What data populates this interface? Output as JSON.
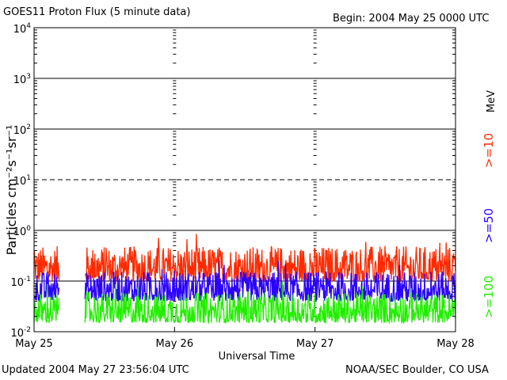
{
  "header": {
    "title": "GOES11 Proton Flux (5 minute data)",
    "begin": "Begin: 2004 May 25 0000 UTC"
  },
  "footer": {
    "updated": "Updated 2004 May 27 23:56:04 UTC",
    "credit": "NOAA/SEC Boulder, CO USA"
  },
  "chart_data": {
    "type": "line",
    "title": "GOES11 Proton Flux (5 minute data)",
    "xlabel": "Universal Time",
    "ylabel": "Particles cm⁻²s⁻¹sr⁻¹",
    "unit_label": "MeV",
    "y_scale": "log",
    "ylim": [
      0.01,
      10000
    ],
    "y_ticks": [
      {
        "base": "10",
        "exp": "-2",
        "value": 0.01
      },
      {
        "base": "10",
        "exp": "-1",
        "value": 0.1
      },
      {
        "base": "10",
        "exp": "0",
        "value": 1
      },
      {
        "base": "10",
        "exp": "1",
        "value": 10
      },
      {
        "base": "10",
        "exp": "2",
        "value": 100
      },
      {
        "base": "10",
        "exp": "3",
        "value": 1000
      },
      {
        "base": "10",
        "exp": "4",
        "value": 10000
      }
    ],
    "x_ticks": [
      "May 25",
      "May 26",
      "May 27",
      "May 28"
    ],
    "xlim_days": [
      0,
      3
    ],
    "grid": true,
    "legend_placement": "right",
    "series": [
      {
        "name": ">=10",
        "color": "#ff2a00",
        "typical_range": [
          0.1,
          0.4
        ],
        "start_day": 0.0,
        "gap_days": [
          0.18,
          0.36
        ]
      },
      {
        "name": ">=50",
        "color": "#2a00ff",
        "typical_range": [
          0.04,
          0.13
        ],
        "start_day": 0.0,
        "gap_days": [
          0.18,
          0.36
        ]
      },
      {
        "name": ">=100",
        "color": "#22ee00",
        "typical_range": [
          0.015,
          0.05
        ],
        "start_day": 0.0,
        "gap_days": [
          0.18,
          0.36
        ]
      }
    ]
  }
}
